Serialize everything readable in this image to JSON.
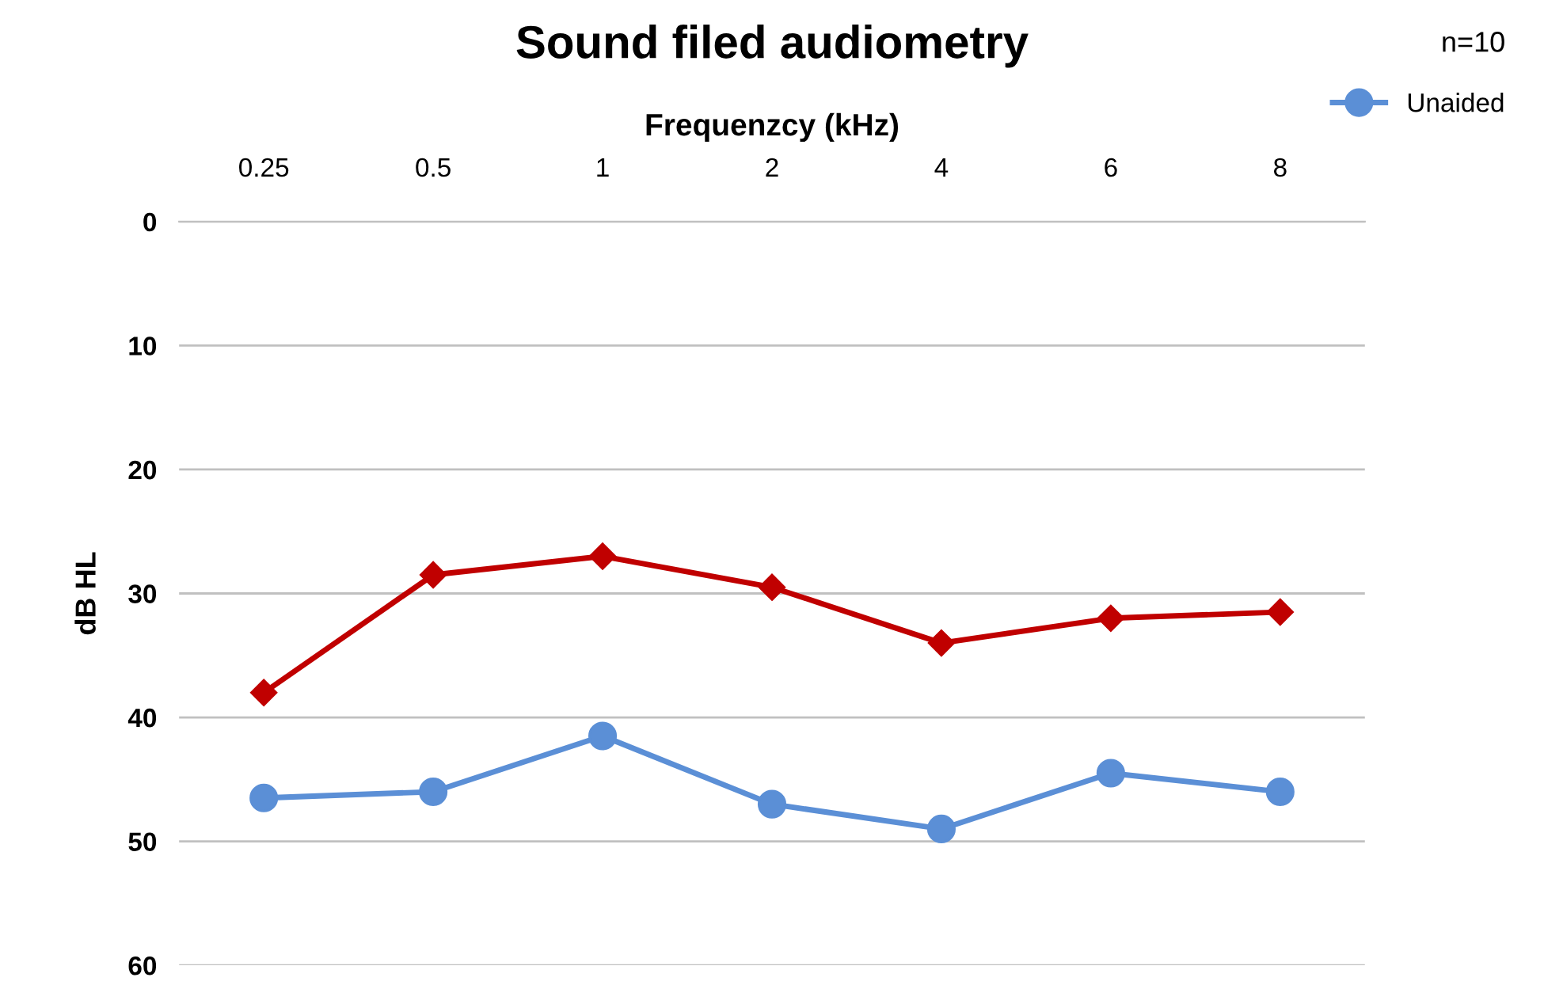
{
  "chart_data": {
    "type": "line",
    "title": "Sound filed audiometry",
    "xlabel": "Frequenzcy (kHz)",
    "ylabel": "dB HL",
    "annotations": [
      "n=10"
    ],
    "categories": [
      "0.25",
      "0.5",
      "1",
      "2",
      "4",
      "6",
      "8"
    ],
    "series": [
      {
        "name": "Unaided",
        "color": "#5b8fd6",
        "marker": "circle",
        "values": [
          46.5,
          46,
          41.5,
          47,
          49,
          44.5,
          46
        ]
      },
      {
        "color": "#c00000",
        "marker": "diamond",
        "values": [
          38,
          28.5,
          27,
          29.5,
          34,
          32,
          31.5
        ]
      }
    ],
    "ylim": [
      60,
      0
    ],
    "yticks": [
      0,
      10,
      20,
      30,
      40,
      50,
      60
    ],
    "grid": "y",
    "legend": "top right"
  }
}
